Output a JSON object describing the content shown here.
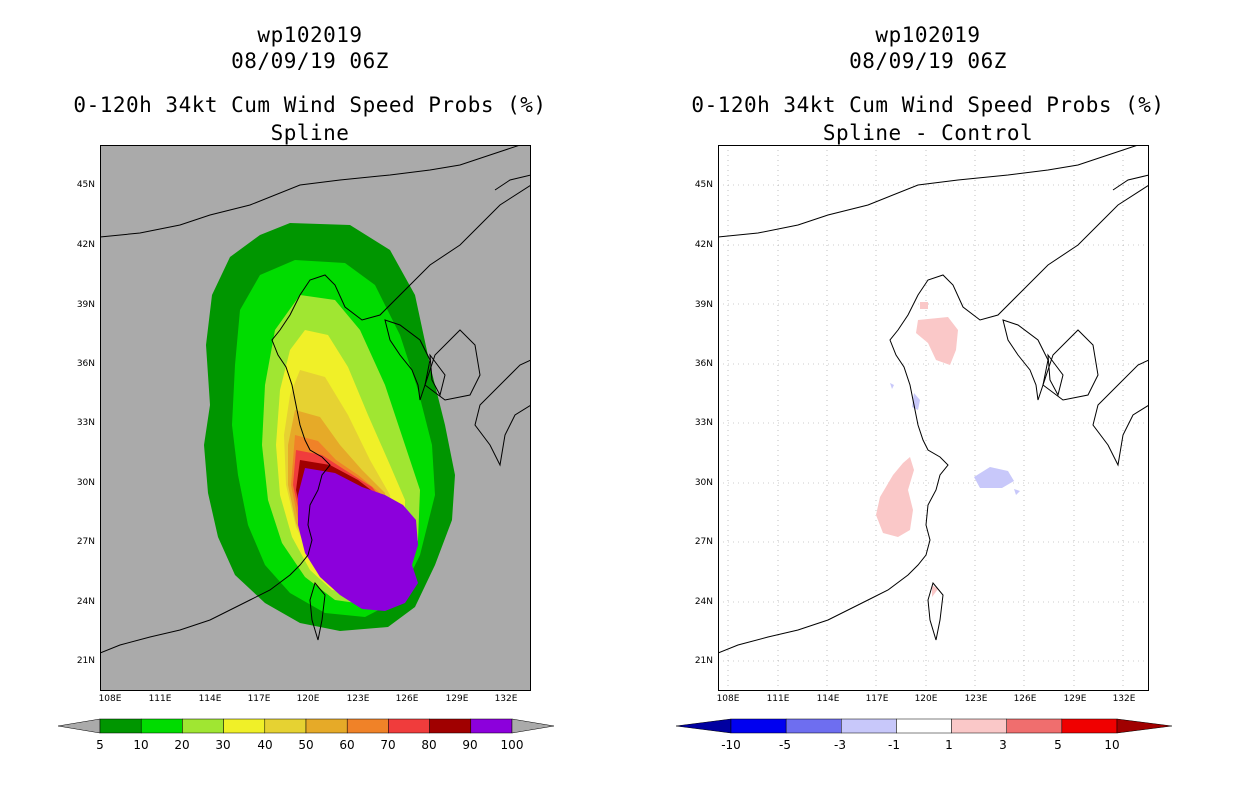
{
  "left_panel": {
    "storm_id": "wp102019",
    "datetime": "08/09/19 06Z",
    "product": "0-120h 34kt Cum Wind Speed Probs (%)",
    "subtitle": "Spline",
    "lat_labels": [
      "45N",
      "42N",
      "39N",
      "36N",
      "33N",
      "30N",
      "27N",
      "24N",
      "21N"
    ],
    "lon_labels": [
      "108E",
      "111E",
      "114E",
      "117E",
      "120E",
      "123E",
      "126E",
      "129E",
      "132E"
    ],
    "colorbar": {
      "ticks": [
        "5",
        "10",
        "20",
        "30",
        "40",
        "50",
        "60",
        "70",
        "80",
        "90",
        "100"
      ],
      "colors": [
        "#009600",
        "#00dc00",
        "#a0e632",
        "#f0f028",
        "#e6d232",
        "#e6aa28",
        "#f08228",
        "#f03c3c",
        "#a00000",
        "#8c00dc"
      ],
      "end_color": "#aaaaaa"
    },
    "background_color": "#aaaaaa"
  },
  "right_panel": {
    "storm_id": "wp102019",
    "datetime": "08/09/19 06Z",
    "product": "0-120h 34kt Cum Wind Speed Probs (%)",
    "subtitle": "Spline - Control",
    "lat_labels": [
      "45N",
      "42N",
      "39N",
      "36N",
      "33N",
      "30N",
      "27N",
      "24N",
      "21N"
    ],
    "lon_labels": [
      "108E",
      "111E",
      "114E",
      "117E",
      "120E",
      "123E",
      "126E",
      "129E",
      "132E"
    ],
    "colorbar": {
      "ticks": [
        "-10",
        "-5",
        "-3",
        "-1",
        "1",
        "3",
        "5",
        "10"
      ],
      "colors": [
        "#0000a0",
        "#0000f0",
        "#6e6ef0",
        "#c8c8fa",
        "#ffffff",
        "#fac8c8",
        "#f06e6e",
        "#f00000",
        "#a00000"
      ]
    },
    "background_color": "#ffffff"
  }
}
